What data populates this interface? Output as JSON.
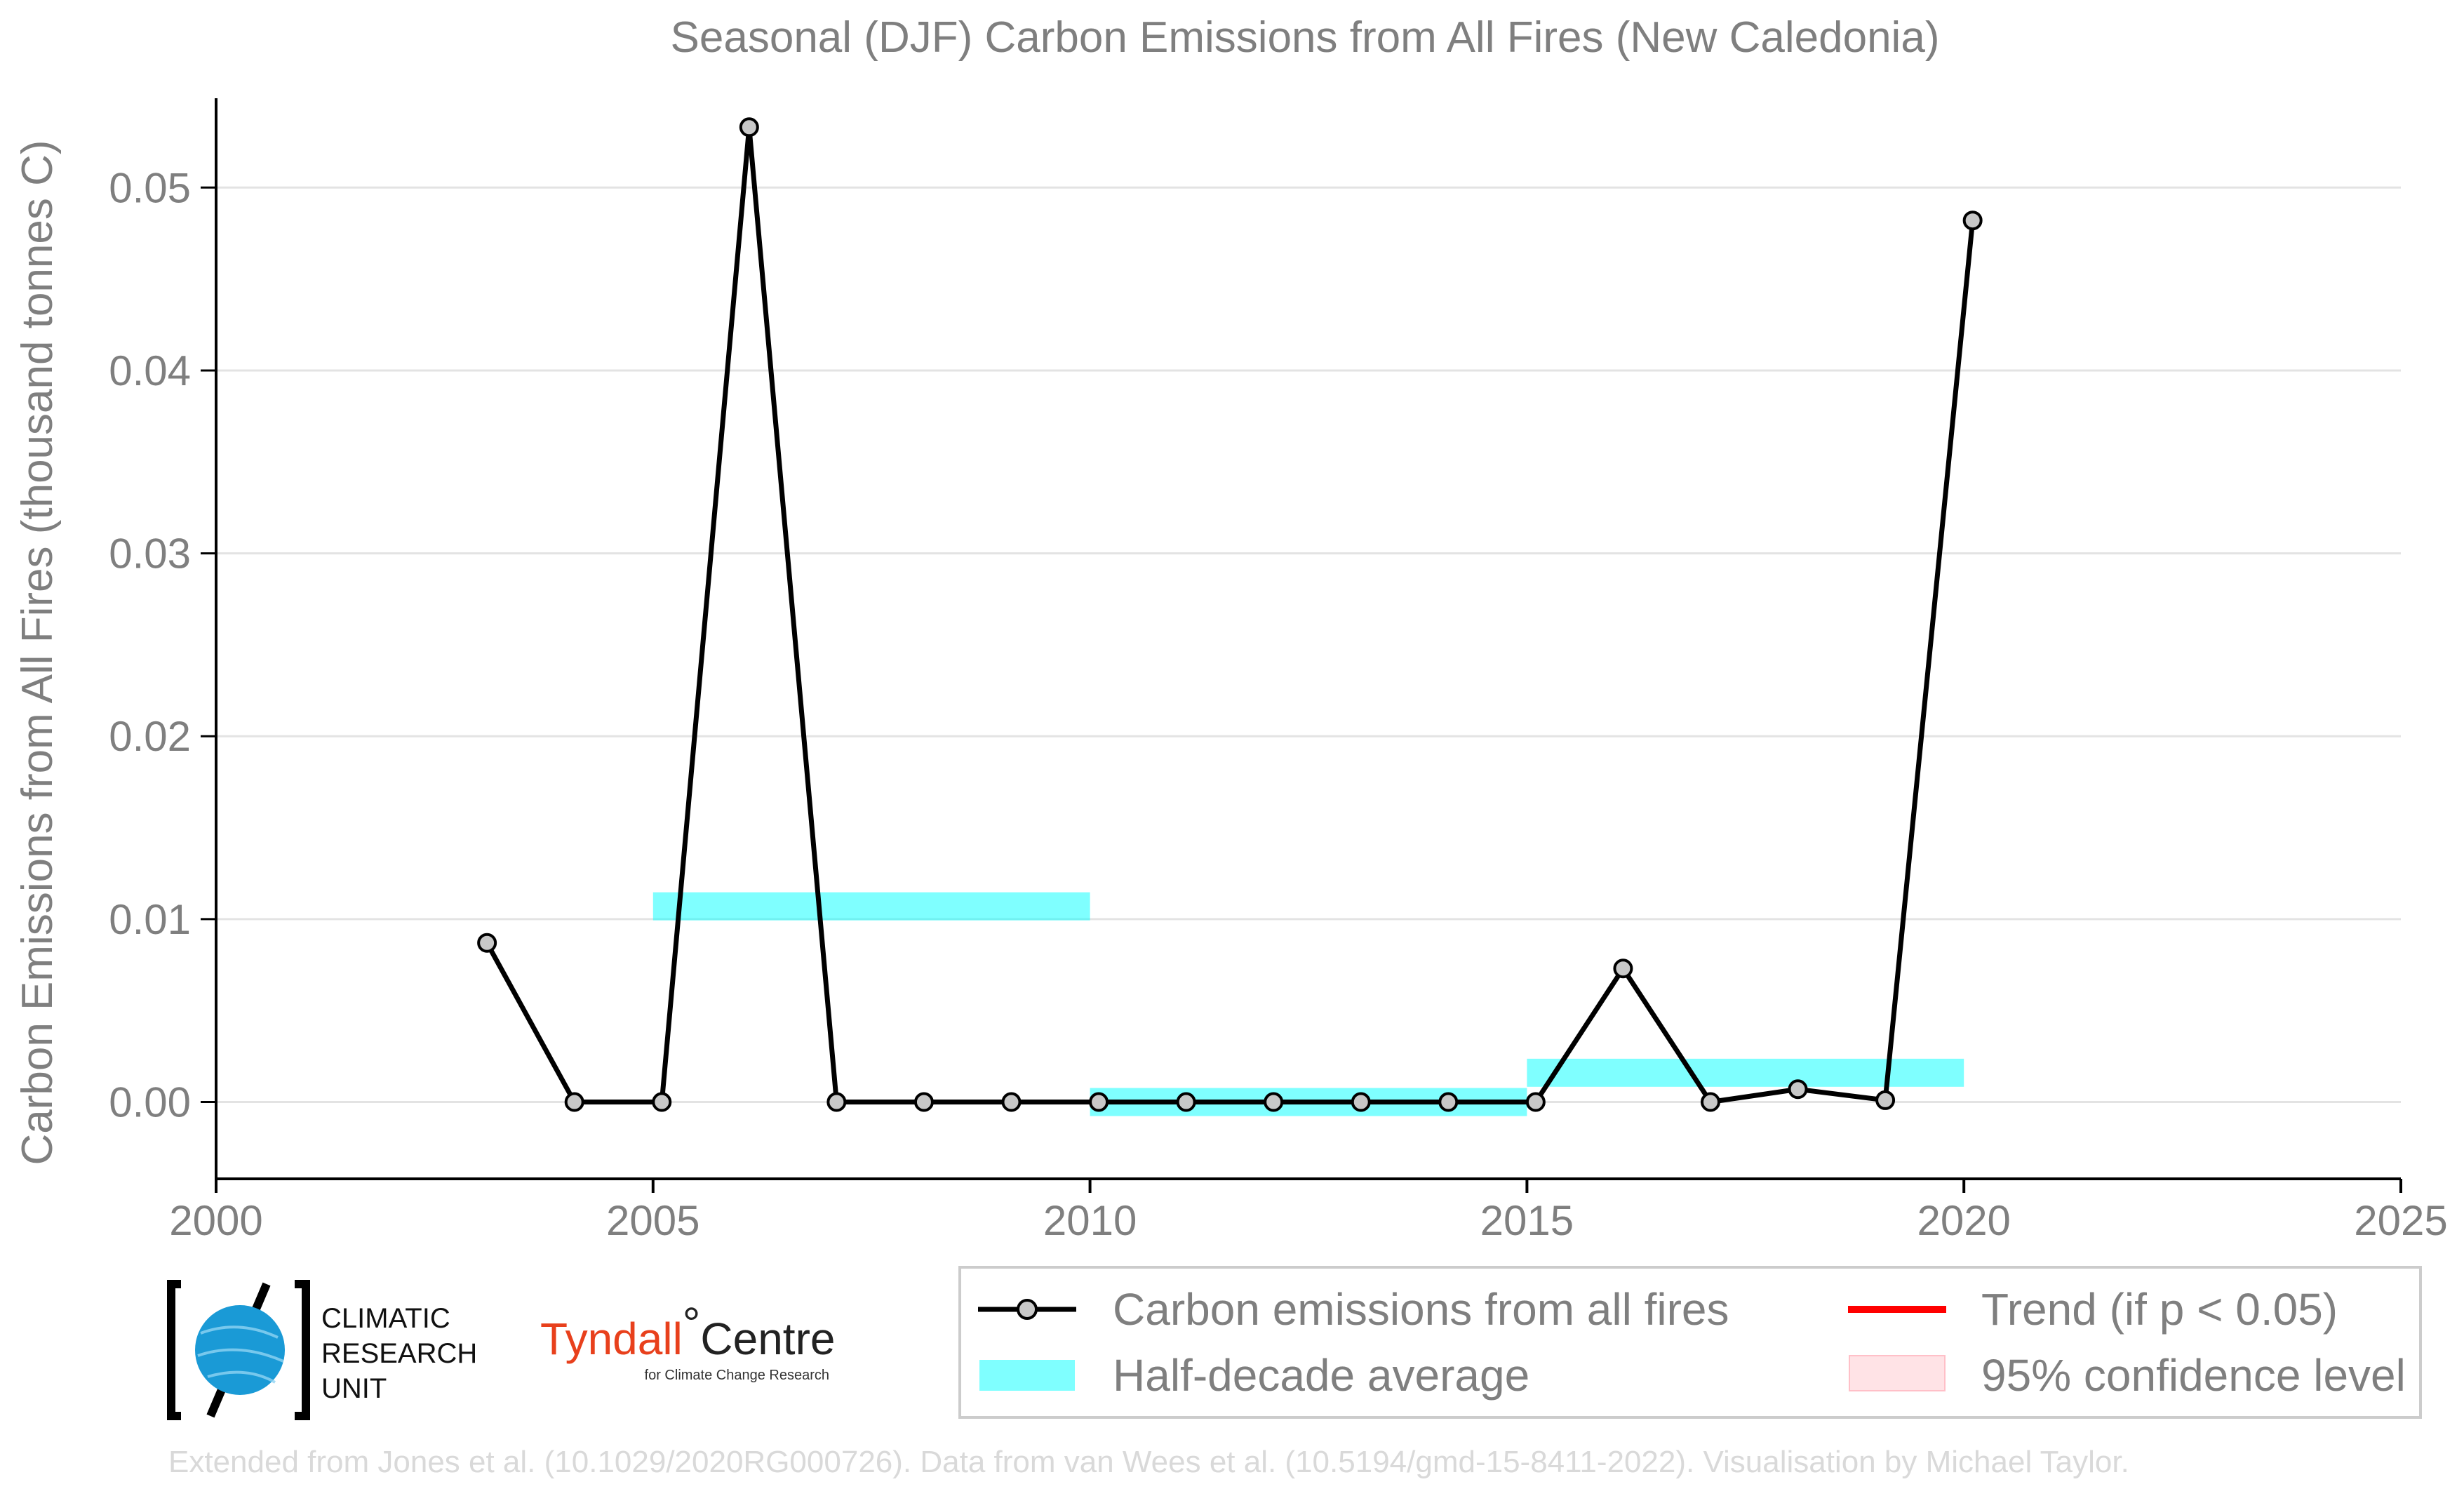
{
  "chart_data": {
    "type": "line",
    "title": "Seasonal (DJF) Carbon Emissions from All Fires (New Caledonia)",
    "xlabel": "",
    "ylabel": "Carbon Emissions from All Fires (thousand tonnes C)",
    "xlim": [
      2000,
      2025
    ],
    "ylim": [
      -0.0042,
      0.0545
    ],
    "x_ticks": [
      "2000",
      "2005",
      "2010",
      "2015",
      "2020",
      "2025"
    ],
    "y_ticks": [
      "0.00",
      "0.01",
      "0.02",
      "0.03",
      "0.04",
      "0.05"
    ],
    "grid": "horizontal",
    "series": [
      {
        "name": "Carbon emissions from all fires",
        "color": "#000000",
        "marker_fill": "#c8c8c8",
        "x": [
          2003.1,
          2004.1,
          2005.1,
          2006.1,
          2007.1,
          2008.1,
          2009.1,
          2010.1,
          2011.1,
          2012.1,
          2013.1,
          2014.1,
          2015.1,
          2016.1,
          2017.1,
          2018.1,
          2019.1,
          2020.1
        ],
        "y": [
          0.0087,
          0.0,
          0.0,
          0.0533,
          0.0,
          0.0,
          0.0,
          0.0,
          0.0,
          0.0,
          0.0,
          0.0,
          0.0,
          0.0073,
          0.0,
          0.0007,
          0.0001,
          0.0482
        ]
      }
    ],
    "half_decade_average": {
      "name": "Half-decade average",
      "color": "#00ffff",
      "segments": [
        {
          "x0": 2005,
          "x1": 2010,
          "y": 0.0107
        },
        {
          "x0": 2010,
          "x1": 2015,
          "y": 0.0
        },
        {
          "x0": 2015,
          "x1": 2020,
          "y": 0.0016
        }
      ]
    },
    "legend": {
      "placement": "bottom-right",
      "entries": [
        {
          "label": "Carbon emissions from all fires",
          "kind": "line-marker",
          "color": "#000000"
        },
        {
          "label": "Trend (if p < 0.05)",
          "kind": "line",
          "color": "#ff0000"
        },
        {
          "label": "Half-decade average",
          "kind": "band",
          "color": "#00ffff"
        },
        {
          "label": "95% confidence level",
          "kind": "band",
          "color": "#ffc0c8"
        }
      ]
    },
    "credit": "Extended from Jones et al. (10.1029/2020RG000726). Data from van Wees et al. (10.5194/gmd-15-8411-2022). Visualisation by Michael Taylor."
  },
  "logos": {
    "cru": [
      "CLIMATIC",
      "RESEARCH",
      "UNIT"
    ],
    "tyndall_main": "Tyndall",
    "tyndall_degree": "°",
    "tyndall_centre": "Centre",
    "tyndall_sub": "for Climate Change Research"
  }
}
